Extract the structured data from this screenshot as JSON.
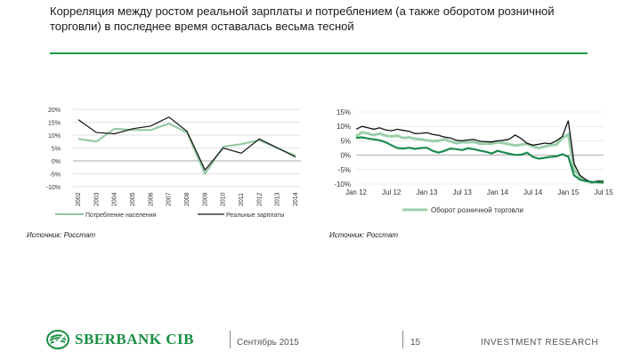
{
  "title": "Корреляция между ростом реальной зарплаты и потреблением (а также оборотом розничной торговли) в последнее время оставалась весьма тесной",
  "colors": {
    "accent": "#1a9b4a",
    "logo": "#1a8f44"
  },
  "chart_data": [
    {
      "type": "line",
      "categories": [
        "2002",
        "2003",
        "2004",
        "2005",
        "2006",
        "2007",
        "2008",
        "2009",
        "2010",
        "2011",
        "2012",
        "2013",
        "2014"
      ],
      "series": [
        {
          "name": "Потребление населения",
          "color": "#8fc79f",
          "values": [
            8.5,
            7.5,
            12.5,
            12,
            12,
            14.5,
            11,
            -5,
            5.5,
            6.5,
            8,
            5,
            2
          ]
        },
        {
          "name": "Реальные зарплаты",
          "color": "#111111",
          "values": [
            16,
            11,
            10.5,
            12.5,
            13.5,
            17,
            11.5,
            -3.5,
            5,
            3,
            8.5,
            5,
            1.5
          ]
        }
      ],
      "yticks": [
        "20%",
        "15%",
        "10%",
        "5%",
        "0%",
        "-5%",
        "-10%"
      ],
      "ylim": [
        -10,
        20
      ],
      "legend": "bottom"
    },
    {
      "type": "line",
      "xticks": [
        "Jan 12",
        "Jul 12",
        "Jan 13",
        "Jul 13",
        "Jan 14",
        "Jul 14",
        "Jan 15",
        "Jul 15"
      ],
      "yticks": [
        "15%",
        "10%",
        "5%",
        "0%",
        "-5%",
        "-10%"
      ],
      "ylim": [
        -10,
        15
      ],
      "series": [
        {
          "name": "Оборот розничной торговли",
          "color": "#9acfa9",
          "values": [
            6.5,
            8,
            7.5,
            7,
            7.5,
            6.8,
            6.5,
            6.8,
            6,
            6.2,
            5.7,
            5.5,
            5.2,
            4.9,
            5,
            5.5,
            4.8,
            4.2,
            4.5,
            4.5,
            4.6,
            4,
            4,
            4,
            4.5,
            4.2,
            3.8,
            3.4,
            3.6,
            4,
            3,
            2.5,
            3,
            3.5,
            3.7,
            6,
            7.2,
            -5,
            -7.5,
            -8.8,
            -9.5,
            -9.2,
            -9
          ]
        },
        {
          "name": "",
          "color": "#111111",
          "values": [
            9,
            10,
            9.5,
            9,
            9.5,
            8.8,
            8.5,
            9,
            8.6,
            8.3,
            7.5,
            7.6,
            7.8,
            7.2,
            6.9,
            6.3,
            6,
            5.2,
            5,
            5.3,
            5.5,
            4.8,
            4.7,
            4.6,
            5,
            5.2,
            5.6,
            7,
            5.8,
            4.1,
            3.5,
            3.8,
            4.2,
            4,
            5,
            6.5,
            12,
            -3,
            -7,
            -8.5,
            -9.5,
            -9,
            -9.2
          ]
        },
        {
          "name": "",
          "color": "#1e8a4e",
          "values": [
            6,
            6.2,
            5.8,
            5.5,
            5.2,
            4.5,
            3.5,
            2.5,
            2.3,
            2.6,
            2.2,
            2.5,
            2.6,
            1.5,
            0.9,
            1.5,
            2.3,
            2.1,
            1.8,
            2.4,
            2.1,
            1.6,
            1.2,
            0.6,
            1.5,
            1,
            0.5,
            0.1,
            0.2,
            0.9,
            -0.6,
            -1.2,
            -0.9,
            -0.6,
            -0.4,
            0.3,
            -0.5,
            -7,
            -8.5,
            -9,
            -9.3,
            -9.4,
            -9.5
          ]
        }
      ],
      "legend": "bottom"
    }
  ],
  "source_left": "Источник: Росстат",
  "source_right": "Источник: Росстат",
  "footer": {
    "logo_text": "SBERBANK CIB",
    "date": "Сентябрь 2015",
    "page": "15",
    "label": "INVESTMENT RESEARCH"
  }
}
